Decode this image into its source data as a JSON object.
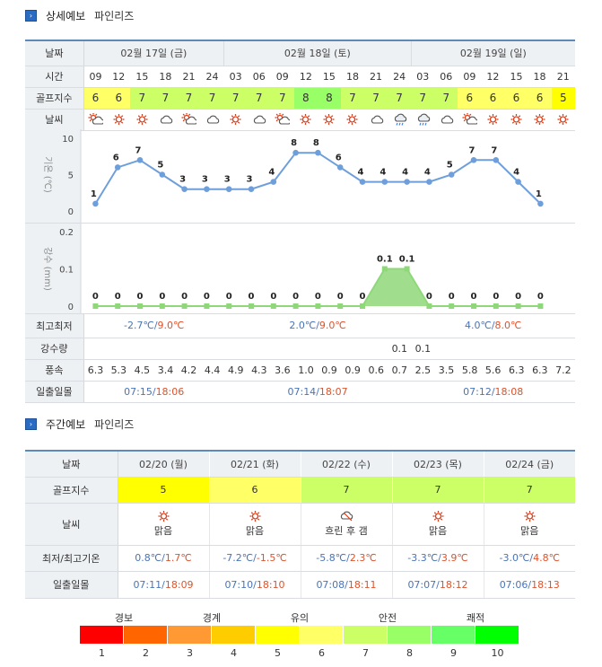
{
  "detail_section": {
    "title": "상세예보",
    "location": "파인리즈"
  },
  "row_labels": {
    "date": "날짜",
    "time": "시간",
    "golf_index": "골프지수",
    "weather": "날씨",
    "temp_axis": "기온 (℃)",
    "precip_axis": "강수 (mm)",
    "minmax": "최고최저",
    "precip_amount": "강수량",
    "wind": "풍속",
    "sun": "일출일몰"
  },
  "days": [
    {
      "label": "02월 17일 (금)",
      "min": "-2.7℃",
      "max": "9.0℃",
      "sunrise": "07:15",
      "sunset": "18:06"
    },
    {
      "label": "02월 18일 (토)",
      "min": "2.0℃",
      "max": "9.0℃",
      "sunrise": "07:14",
      "sunset": "18:07"
    },
    {
      "label": "02월 19일 (일)",
      "min": "4.0℃",
      "max": "8.0℃",
      "sunrise": "07:12",
      "sunset": "18:08"
    }
  ],
  "hours": [
    "09",
    "12",
    "15",
    "18",
    "21",
    "24",
    "03",
    "06",
    "09",
    "12",
    "15",
    "18",
    "21",
    "24",
    "03",
    "06",
    "09",
    "12",
    "15",
    "18",
    "21"
  ],
  "golf": [
    6,
    6,
    7,
    7,
    7,
    7,
    7,
    7,
    7,
    8,
    8,
    7,
    7,
    7,
    7,
    7,
    6,
    6,
    6,
    6,
    5
  ],
  "weather_icons": [
    "sun-cloud-icon",
    "sun-icon",
    "sun-icon",
    "cloud-icon",
    "sun-cloud-icon",
    "cloud-icon",
    "sun-icon",
    "cloud-icon",
    "sun-cloud-icon",
    "sun-icon",
    "sun-icon",
    "sun-icon",
    "cloud-icon",
    "rain-cloud-icon",
    "rain-cloud-icon",
    "cloud-icon",
    "sun-cloud-icon",
    "sun-icon",
    "sun-icon",
    "sun-icon",
    "sun-icon"
  ],
  "precip_amount": [
    "",
    "",
    "",
    "",
    "",
    "",
    "",
    "",
    "",
    "",
    "",
    "",
    "",
    "0.1",
    "0.1",
    "",
    "",
    "",
    "",
    "",
    ""
  ],
  "wind": [
    "6.3",
    "5.3",
    "4.5",
    "3.4",
    "4.2",
    "4.4",
    "4.9",
    "4.3",
    "3.6",
    "1.0",
    "0.9",
    "0.9",
    "0.6",
    "0.7",
    "2.5",
    "3.5",
    "5.8",
    "5.6",
    "6.3",
    "6.3",
    "7.2"
  ],
  "chart_data": [
    {
      "type": "line",
      "ylabel": "기온 (℃)",
      "ylim": [
        0,
        10
      ],
      "yticks": [
        "0",
        "5",
        "10"
      ],
      "values": [
        1,
        6,
        7,
        5,
        3,
        3,
        3,
        3,
        4,
        8,
        8,
        6,
        4,
        4,
        4,
        4,
        5,
        7,
        7,
        4,
        1
      ],
      "color": "#6f9fdb"
    },
    {
      "type": "area",
      "ylabel": "강수 (mm)",
      "ylim": [
        0,
        0.2
      ],
      "yticks": [
        "0",
        "0.1",
        "0.2"
      ],
      "values": [
        0,
        0,
        0,
        0,
        0,
        0,
        0,
        0,
        0,
        0,
        0,
        0,
        0,
        0.1,
        0.1,
        0,
        0,
        0,
        0,
        0,
        0
      ],
      "labels": [
        "0",
        "0",
        "0",
        "0",
        "0",
        "0",
        "0",
        "0",
        "0",
        "0",
        "0",
        "0",
        "0",
        "0.1",
        "0.1",
        "0",
        "0",
        "0",
        "0",
        "0",
        "0"
      ],
      "color": "#8fd87a"
    }
  ],
  "weekly_section": {
    "title": "주간예보",
    "location": "파인리즈"
  },
  "weekly_labels": {
    "date": "날짜",
    "golf_index": "골프지수",
    "weather": "날씨",
    "minmax": "최저/최고기온",
    "sun": "일출일몰"
  },
  "weekly": [
    {
      "date": "02/20 (월)",
      "golf": 5,
      "golf_text": "5",
      "weather": "맑음",
      "icon": "sun-icon",
      "min": "0.8℃",
      "max": "1.7℃",
      "sunrise": "07:11",
      "sunset": "18:09"
    },
    {
      "date": "02/21 (화)",
      "golf": 6,
      "golf_text": "6",
      "weather": "맑음",
      "icon": "sun-icon",
      "min": "-7.2℃",
      "max": "-1.5℃",
      "sunrise": "07:10",
      "sunset": "18:10"
    },
    {
      "date": "02/22 (수)",
      "golf": 7,
      "golf_text": "7",
      "weather": "흐린 후 갬",
      "icon": "cloud-sun-icon",
      "min": "-5.8℃",
      "max": "2.3℃",
      "sunrise": "07:08",
      "sunset": "18:11"
    },
    {
      "date": "02/23 (목)",
      "golf": 7,
      "golf_text": "7",
      "weather": "맑음",
      "icon": "sun-icon",
      "min": "-3.3℃",
      "max": "3.9℃",
      "sunrise": "07:07",
      "sunset": "18:12"
    },
    {
      "date": "02/24 (금)",
      "golf": 7,
      "golf_text": "7",
      "weather": "맑음",
      "icon": "sun-icon",
      "min": "-3.0℃",
      "max": "4.8℃",
      "sunrise": "07:06",
      "sunset": "18:13"
    }
  ],
  "golf_colors": {
    "5": "#ffff00",
    "6": "#ffff66",
    "7": "#ccff66",
    "8": "#99ff66"
  },
  "legend": {
    "labels": [
      "경보",
      "경계",
      "유의",
      "안전",
      "쾌적"
    ],
    "numbers": [
      "1",
      "2",
      "3",
      "4",
      "5",
      "6",
      "7",
      "8",
      "9",
      "10"
    ],
    "colors": [
      "#ff0000",
      "#ff6600",
      "#ff9933",
      "#ffcc00",
      "#ffff00",
      "#ffff66",
      "#ccff66",
      "#99ff66",
      "#66ff66",
      "#00ff00"
    ]
  }
}
